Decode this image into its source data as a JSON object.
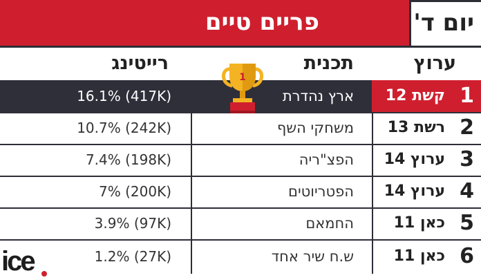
{
  "header": {
    "title": "פריים טיים",
    "day": "יום ד'"
  },
  "columns": {
    "channel": "ערוץ",
    "program": "תכנית",
    "rating": "רייטינג"
  },
  "rows": [
    {
      "rank": "1",
      "channel": "קשת 12",
      "program": "ארץ נהדרת",
      "rating": "16.1% (417K)"
    },
    {
      "rank": "2",
      "channel": "רשת 13",
      "program": "משחקי השף",
      "rating": "10.7% (242K)"
    },
    {
      "rank": "3",
      "channel": "ערוץ 14",
      "program": "הפצ\"ריה",
      "rating": "7.4% (198K)"
    },
    {
      "rank": "4",
      "channel": "ערוץ 14",
      "program": "הפטריוטים",
      "rating": "7% (200K)"
    },
    {
      "rank": "5",
      "channel": "כאן 11",
      "program": "החמאם",
      "rating": "3.9% (97K)"
    },
    {
      "rank": "6",
      "channel": "כאן 11",
      "program": "ש.ח שיר אחד",
      "rating": "1.2% (27K)"
    }
  ],
  "trophy": {
    "number": "1"
  },
  "logo": {
    "text": "ice"
  },
  "colors": {
    "accent": "#cf1f2e",
    "dark": "#2f2f3a",
    "gold": "#f3b323"
  }
}
